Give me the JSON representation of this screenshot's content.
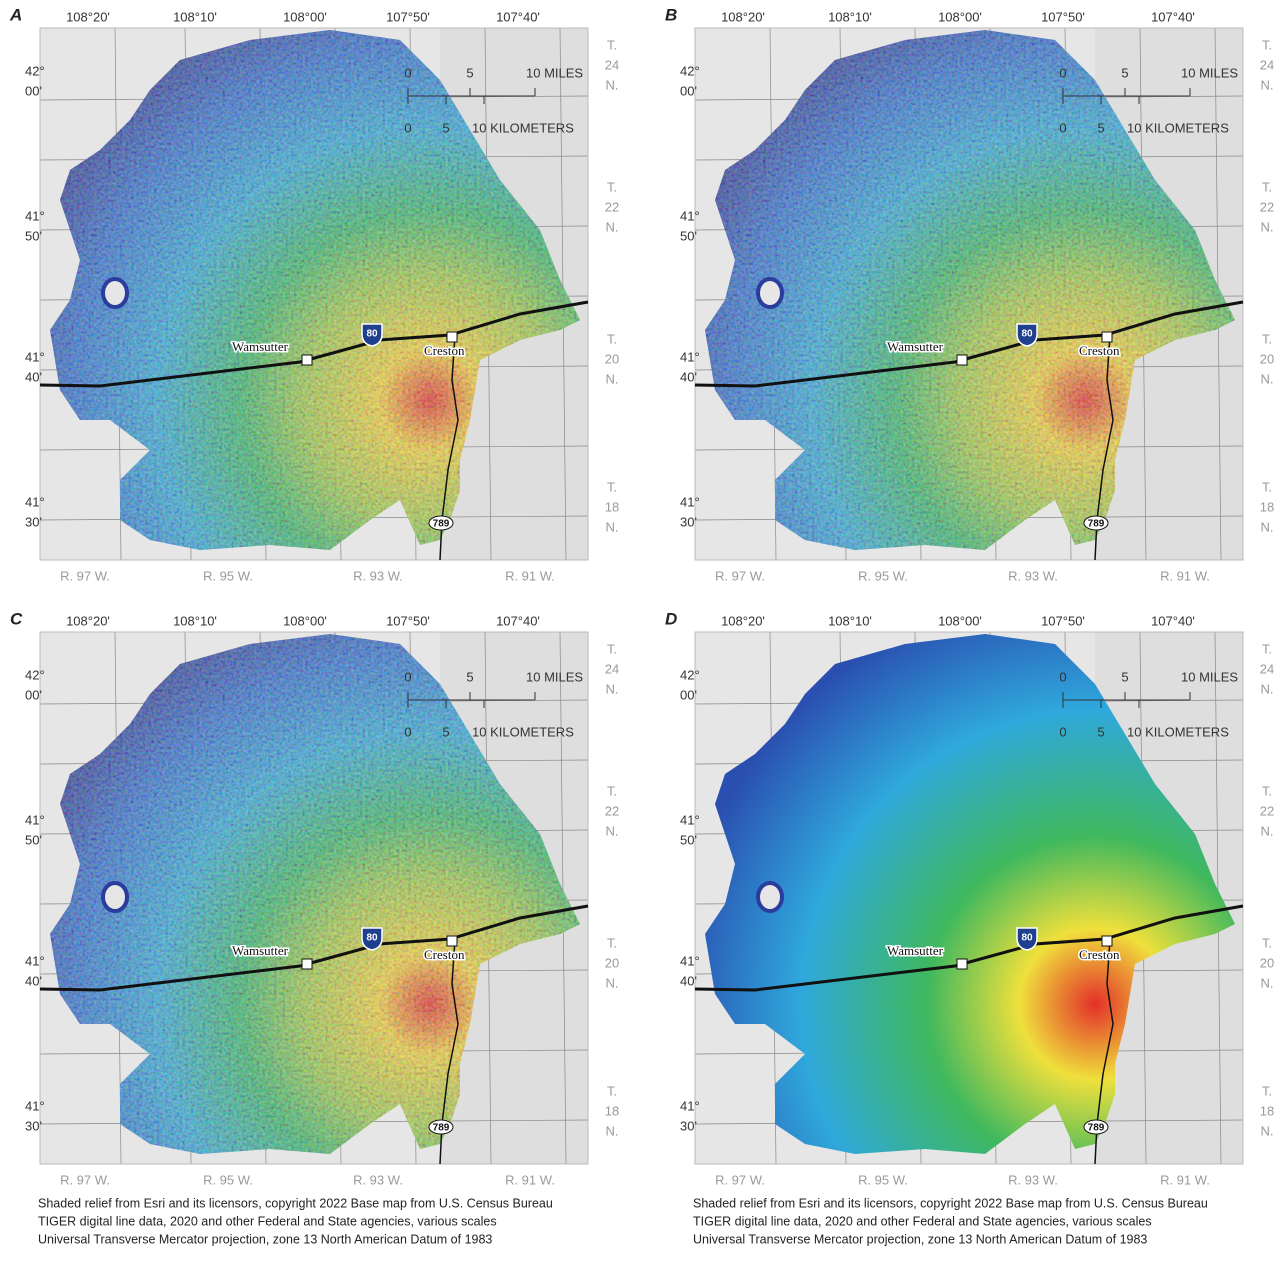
{
  "panels": [
    {
      "label": "A"
    },
    {
      "label": "B"
    },
    {
      "label": "C"
    },
    {
      "label": "D"
    }
  ],
  "longitudes": [
    "108°20'",
    "108°10'",
    "108°00'",
    "107°50'",
    "107°40'"
  ],
  "latitudes": [
    [
      "42°",
      "00'"
    ],
    [
      "41°",
      "50'"
    ],
    [
      "41°",
      "40'"
    ],
    [
      "41°",
      "30'"
    ]
  ],
  "townships": [
    [
      "T.",
      "24",
      "N."
    ],
    [
      "T.",
      "22",
      "N."
    ],
    [
      "T.",
      "20",
      "N."
    ],
    [
      "T.",
      "18",
      "N."
    ]
  ],
  "ranges": [
    "R. 97 W.",
    "R. 95 W.",
    "R. 93 W.",
    "R. 91 W."
  ],
  "scale": {
    "miles": [
      "0",
      "5",
      "10 MILES"
    ],
    "kilometers": [
      "0",
      "5",
      "10 KILOMETERS"
    ]
  },
  "places": {
    "towns": [
      "Wamsutter",
      "Creston"
    ],
    "highways": [
      "80",
      "789"
    ]
  },
  "credits": [
    "Shaded relief from Esri and its licensors, copyright 2022 Base map from U.S. Census Bureau",
    "TIGER digital line data, 2020 and other Federal and State agencies, various scales",
    "Universal Transverse Mercator projection, zone 13 North American Datum of 1983"
  ]
}
